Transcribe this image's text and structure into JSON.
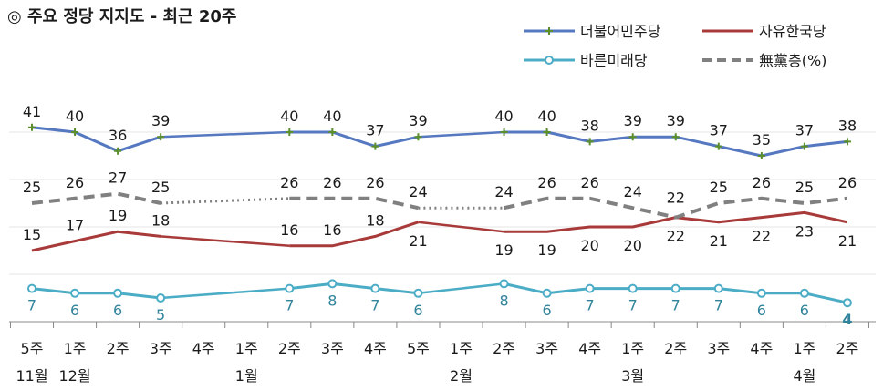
{
  "chart_data": {
    "type": "line",
    "title": "◎ 주요 정당 지지도 - 최근 20주",
    "categories": [
      "5주",
      "1주",
      "2주",
      "3주",
      "4주",
      "1주",
      "2주",
      "3주",
      "4주",
      "5주",
      "1주",
      "2주",
      "3주",
      "4주",
      "1주",
      "2주",
      "3주",
      "4주",
      "1주",
      "2주"
    ],
    "months": [
      {
        "label": "11월",
        "at": 0
      },
      {
        "label": "12월",
        "at": 1
      },
      {
        "label": "1월",
        "at": 5
      },
      {
        "label": "2월",
        "at": 10
      },
      {
        "label": "3월",
        "at": 14
      },
      {
        "label": "4월",
        "at": 18
      }
    ],
    "series": [
      {
        "name": "더불어민주당",
        "color": "#5578c0",
        "marker": "plus",
        "values": [
          41,
          40,
          36,
          39,
          null,
          null,
          40,
          40,
          37,
          39,
          null,
          40,
          40,
          38,
          39,
          39,
          37,
          35,
          37,
          38
        ]
      },
      {
        "name": "자유한국당",
        "color": "#a83a3a",
        "marker": "none",
        "values": [
          15,
          17,
          19,
          18,
          null,
          null,
          16,
          16,
          18,
          21,
          null,
          19,
          19,
          20,
          20,
          22,
          21,
          22,
          23,
          21
        ]
      },
      {
        "name": "바른미래당",
        "color": "#4bacc6",
        "marker": "circle",
        "values": [
          7,
          6,
          6,
          5,
          null,
          null,
          7,
          8,
          7,
          6,
          null,
          8,
          6,
          7,
          7,
          7,
          7,
          6,
          6,
          4
        ]
      },
      {
        "name": "無黨층(%)",
        "color": "#808080",
        "marker": "dash",
        "values": [
          25,
          26,
          27,
          25,
          null,
          null,
          26,
          26,
          26,
          24,
          null,
          24,
          26,
          26,
          24,
          22,
          25,
          26,
          25,
          26
        ]
      }
    ],
    "ylim": [
      0,
      50
    ],
    "legend": "top-right"
  }
}
